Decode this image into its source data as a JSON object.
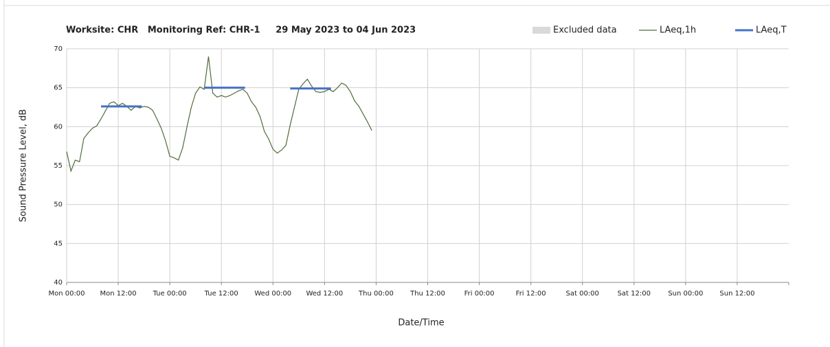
{
  "chart_data": {
    "type": "line",
    "title": "Worksite: CHR   Monitoring Ref: CHR-1     29 May 2023 to 04 Jun 2023",
    "x_label": "Date/Time",
    "y_label": "Sound Pressure Level, dB",
    "xlim": [
      0,
      168
    ],
    "xticks": [
      {
        "value": 0,
        "label": "Mon 00:00"
      },
      {
        "value": 12,
        "label": "Mon 12:00"
      },
      {
        "value": 24,
        "label": "Tue 00:00"
      },
      {
        "value": 36,
        "label": "Tue 12:00"
      },
      {
        "value": 48,
        "label": "Wed 00:00"
      },
      {
        "value": 60,
        "label": "Wed 12:00"
      },
      {
        "value": 72,
        "label": "Thu 00:00"
      },
      {
        "value": 84,
        "label": "Thu 12:00"
      },
      {
        "value": 96,
        "label": "Fri 00:00"
      },
      {
        "value": 108,
        "label": "Fri 12:00"
      },
      {
        "value": 120,
        "label": "Sat 00:00"
      },
      {
        "value": 132,
        "label": "Sat 12:00"
      },
      {
        "value": 144,
        "label": "Sun 00:00"
      },
      {
        "value": 156,
        "label": "Sun 12:00"
      }
    ],
    "ylim": [
      40,
      70
    ],
    "yticks": [
      40,
      45,
      50,
      55,
      60,
      65,
      70
    ],
    "grid": true,
    "legend": "top-right",
    "series": [
      {
        "name": "Excluded data",
        "color": "#d9d9d9",
        "style": "box",
        "x": [],
        "values": []
      },
      {
        "name": "LAeq,1h",
        "color": "#4e6b3a",
        "style": "thin",
        "x": [
          0,
          1,
          2,
          3,
          4,
          5,
          6,
          7,
          8,
          9,
          10,
          11,
          12,
          13,
          14,
          15,
          16,
          17,
          18,
          19,
          20,
          21,
          22,
          23,
          24,
          25,
          26,
          27,
          28,
          29,
          30,
          31,
          32,
          33,
          34,
          35,
          36,
          37,
          38,
          39,
          40,
          41,
          42,
          43,
          44,
          45,
          46,
          47,
          48,
          49,
          50,
          51,
          52,
          53,
          54,
          55,
          56,
          57,
          58,
          59,
          60,
          61,
          62,
          63,
          64,
          65,
          66,
          67,
          68,
          69,
          70,
          71
        ],
        "values": [
          56.8,
          54.3,
          55.7,
          55.5,
          58.5,
          59.2,
          59.8,
          60.1,
          61.0,
          62.0,
          63.0,
          63.2,
          62.7,
          63.0,
          62.6,
          62.1,
          62.6,
          62.4,
          62.6,
          62.5,
          62.1,
          61.0,
          59.8,
          58.2,
          56.2,
          56.0,
          55.7,
          57.3,
          60.0,
          62.5,
          64.3,
          65.1,
          64.8,
          69.0,
          64.3,
          63.8,
          64.0,
          63.8,
          64.0,
          64.3,
          64.6,
          64.8,
          64.3,
          63.2,
          62.5,
          61.3,
          59.4,
          58.4,
          57.1,
          56.6,
          57.0,
          57.6,
          60.2,
          62.5,
          64.8,
          65.5,
          66.1,
          65.2,
          64.5,
          64.4,
          64.5,
          64.8,
          64.5,
          65.0,
          65.6,
          65.3,
          64.5,
          63.3,
          62.6,
          61.6,
          60.6,
          59.5
        ]
      },
      {
        "name": "LAeq,T",
        "color": "#4472c4",
        "style": "thick",
        "x": [
          8,
          17.5,
          17.5,
          32,
          41.5,
          41.5,
          52,
          61.5
        ],
        "values": [
          62.6,
          62.6,
          null,
          65.0,
          65.0,
          null,
          64.9,
          64.9
        ]
      }
    ]
  }
}
